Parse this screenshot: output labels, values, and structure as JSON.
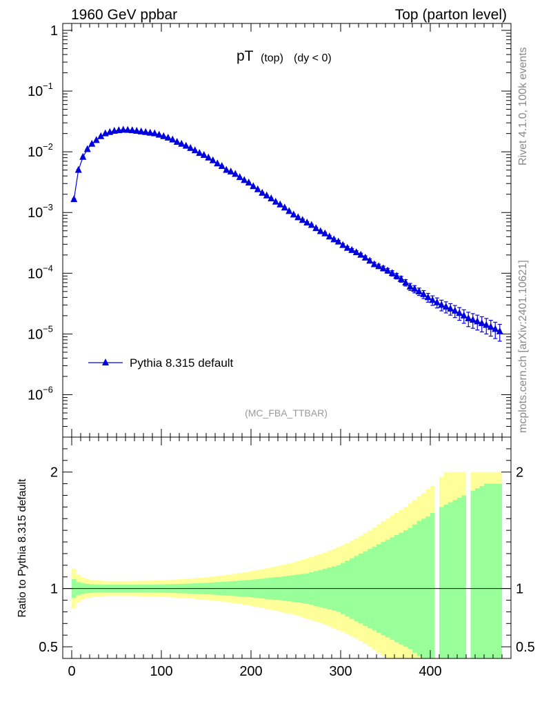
{
  "header": {
    "left": "1960 GeV ppbar",
    "right": "Top (parton level)"
  },
  "side": {
    "rivet": "Rivet 4.1.0,  100k events",
    "mcplots": "mcplots.cern.ch [arXiv:2401.10621]"
  },
  "colors": {
    "mc": "#0000dd",
    "band_inner": "#99ff99",
    "band_outer": "#ffff99"
  },
  "chart_data": [
    {
      "type": "line",
      "scale": "log",
      "title_main": "pT",
      "title_sub1": "(top)",
      "title_sub2": "(dy < 0)",
      "analysis": "(MC_FBA_TTBAR)",
      "xlim": [
        -10,
        490
      ],
      "ylim": [
        2e-07,
        1.3
      ],
      "yticks": [
        {
          "v": 1,
          "label": "1"
        },
        {
          "v": 0.1,
          "base": "10",
          "exp": "−1"
        },
        {
          "v": 0.01,
          "base": "10",
          "exp": "−2"
        },
        {
          "v": 0.001,
          "base": "10",
          "exp": "−3"
        },
        {
          "v": 0.0001,
          "base": "10",
          "exp": "−4"
        },
        {
          "v": 1e-05,
          "base": "10",
          "exp": "−5"
        },
        {
          "v": 1e-06,
          "base": "10",
          "exp": "−6"
        }
      ],
      "legend": "Pythia 8.315 default",
      "series": [
        {
          "name": "Pythia 8.315 default",
          "x": [
            2.5,
            7.5,
            12.5,
            17.5,
            22.5,
            27.5,
            32.5,
            37.5,
            42.5,
            47.5,
            52.5,
            57.5,
            62.5,
            67.5,
            72.5,
            77.5,
            82.5,
            87.5,
            92.5,
            97.5,
            102.5,
            107.5,
            112.5,
            117.5,
            122.5,
            127.5,
            132.5,
            137.5,
            142.5,
            147.5,
            152.5,
            157.5,
            162.5,
            167.5,
            172.5,
            177.5,
            182.5,
            187.5,
            192.5,
            197.5,
            202.5,
            207.5,
            212.5,
            217.5,
            222.5,
            227.5,
            232.5,
            237.5,
            242.5,
            247.5,
            252.5,
            257.5,
            262.5,
            267.5,
            272.5,
            277.5,
            282.5,
            287.5,
            292.5,
            297.5,
            302.5,
            307.5,
            312.5,
            317.5,
            322.5,
            327.5,
            332.5,
            337.5,
            342.5,
            347.5,
            352.5,
            357.5,
            362.5,
            367.5,
            372.5,
            377.5,
            382.5,
            387.5,
            392.5,
            397.5,
            402.5,
            407.5,
            412.5,
            417.5,
            422.5,
            427.5,
            432.5,
            437.5,
            442.5,
            447.5,
            452.5,
            457.5,
            462.5,
            467.5,
            472.5,
            477.5
          ],
          "y": [
            0.00165,
            0.005,
            0.0082,
            0.011,
            0.0135,
            0.0155,
            0.018,
            0.02,
            0.021,
            0.022,
            0.0225,
            0.023,
            0.0228,
            0.0225,
            0.022,
            0.0215,
            0.021,
            0.0205,
            0.02,
            0.019,
            0.018,
            0.017,
            0.0158,
            0.0145,
            0.0135,
            0.0125,
            0.0115,
            0.0105,
            0.0095,
            0.0088,
            0.008,
            0.0072,
            0.0064,
            0.0058,
            0.005,
            0.0047,
            0.0043,
            0.0038,
            0.0034,
            0.0031,
            0.0027,
            0.0024,
            0.0021,
            0.0019,
            0.0017,
            0.0015,
            0.00135,
            0.0012,
            0.00105,
            0.00092,
            0.00083,
            0.00075,
            0.00068,
            0.00062,
            0.00055,
            0.00049,
            0.00045,
            0.0004,
            0.00036,
            0.00033,
            0.00029,
            0.00026,
            0.00024,
            0.00022,
            0.0002,
            0.00018,
            0.00016,
            0.00014,
            0.00013,
            0.00012,
            0.00011,
            0.0001,
            9e-05,
            8e-05,
            7e-05,
            6e-05,
            5.5e-05,
            5e-05,
            4.5e-05,
            4e-05,
            3.6e-05,
            3.3e-05,
            3e-05,
            2.8e-05,
            2.6e-05,
            2.4e-05,
            2.2e-05,
            2e-05,
            1.8e-05,
            1.7e-05,
            1.6e-05,
            1.5e-05,
            1.4e-05,
            1.3e-05,
            1.2e-05,
            1.1e-05
          ],
          "err": [
            4e-05,
            8e-05,
            0.0001,
            0.00012,
            0.00013,
            0.00014,
            0.00015,
            0.00016,
            0.00016,
            0.00017,
            0.00017,
            0.00017,
            0.00017,
            0.00017,
            0.00017,
            0.00017,
            0.00016,
            0.00016,
            0.00016,
            0.00015,
            0.00015,
            0.00014,
            0.00014,
            0.00013,
            0.00013,
            0.00012,
            0.00012,
            0.00011,
            0.0001,
            0.0001,
            9.5e-05,
            9e-05,
            8.5e-05,
            8e-05,
            7.5e-05,
            7e-05,
            6.6e-05,
            6.2e-05,
            5.8e-05,
            5.5e-05,
            5.2e-05,
            4.9e-05,
            4.6e-05,
            4.4e-05,
            4.1e-05,
            3.9e-05,
            3.7e-05,
            3.4e-05,
            3.2e-05,
            3e-05,
            2.8e-05,
            2.7e-05,
            2.5e-05,
            2.4e-05,
            2.3e-05,
            2.2e-05,
            2.1e-05,
            2e-05,
            1.9e-05,
            1.8e-05,
            1.7e-05,
            1.6e-05,
            1.5e-05,
            1.4e-05,
            1.4e-05,
            1.3e-05,
            1.2e-05,
            1.2e-05,
            1.1e-05,
            1.1e-05,
            1e-05,
            1e-05,
            9.5e-06,
            9e-06,
            8.5e-06,
            8e-06,
            7.5e-06,
            7e-06,
            6.8e-06,
            6.6e-06,
            6.4e-06,
            6.2e-06,
            6e-06,
            5.8e-06,
            5.6e-06,
            5.4e-06,
            5.2e-06,
            5e-06,
            4.8e-06,
            4.6e-06,
            4.4e-06,
            4.2e-06,
            4e-06,
            3.8e-06,
            3.6e-06,
            3.4e-06
          ]
        }
      ]
    },
    {
      "type": "area",
      "ylabel": "Ratio to Pythia 8.315 default",
      "xlim": [
        -10,
        490
      ],
      "ylim": [
        0.4,
        2.3
      ],
      "xticks": [
        0,
        100,
        200,
        300,
        400
      ],
      "yticks": [
        0.5,
        1,
        2
      ],
      "reference": 1,
      "x": [
        2.5,
        7.5,
        12.5,
        17.5,
        22.5,
        27.5,
        32.5,
        37.5,
        42.5,
        47.5,
        52.5,
        57.5,
        62.5,
        67.5,
        72.5,
        77.5,
        82.5,
        87.5,
        92.5,
        97.5,
        102.5,
        107.5,
        112.5,
        117.5,
        122.5,
        127.5,
        132.5,
        137.5,
        142.5,
        147.5,
        152.5,
        157.5,
        162.5,
        167.5,
        172.5,
        177.5,
        182.5,
        187.5,
        192.5,
        197.5,
        202.5,
        207.5,
        212.5,
        217.5,
        222.5,
        227.5,
        232.5,
        237.5,
        242.5,
        247.5,
        252.5,
        257.5,
        262.5,
        267.5,
        272.5,
        277.5,
        282.5,
        287.5,
        292.5,
        297.5,
        302.5,
        307.5,
        312.5,
        317.5,
        322.5,
        327.5,
        332.5,
        337.5,
        342.5,
        347.5,
        352.5,
        357.5,
        362.5,
        367.5,
        372.5,
        377.5,
        382.5,
        387.5,
        392.5,
        397.5,
        402.5,
        407.5,
        412.5,
        417.5,
        422.5,
        427.5,
        432.5,
        437.5,
        442.5,
        447.5,
        452.5,
        457.5,
        462.5,
        467.5,
        472.5,
        477.5
      ],
      "inner": [
        0.08,
        0.055,
        0.045,
        0.04,
        0.037,
        0.035,
        0.034,
        0.033,
        0.033,
        0.033,
        0.033,
        0.033,
        0.033,
        0.033,
        0.033,
        0.033,
        0.034,
        0.034,
        0.035,
        0.035,
        0.036,
        0.037,
        0.038,
        0.039,
        0.04,
        0.041,
        0.043,
        0.045,
        0.046,
        0.048,
        0.05,
        0.052,
        0.055,
        0.057,
        0.06,
        0.062,
        0.065,
        0.068,
        0.07,
        0.073,
        0.077,
        0.08,
        0.085,
        0.09,
        0.094,
        0.098,
        0.1,
        0.105,
        0.11,
        0.115,
        0.12,
        0.125,
        0.13,
        0.14,
        0.15,
        0.16,
        0.17,
        0.18,
        0.19,
        0.2,
        0.22,
        0.24,
        0.26,
        0.28,
        0.3,
        0.32,
        0.34,
        0.36,
        0.38,
        0.4,
        0.42,
        0.44,
        0.46,
        0.48,
        0.5,
        0.52,
        0.55,
        0.58,
        0.6,
        0.62,
        0.65,
        0.68,
        0.7,
        0.72,
        0.74,
        0.76,
        0.78,
        0.8,
        0.82,
        0.84,
        0.86,
        0.88,
        0.9,
        0.9,
        0.9,
        0.9
      ],
      "outer": [
        0.17,
        0.12,
        0.095,
        0.082,
        0.075,
        0.07,
        0.067,
        0.065,
        0.064,
        0.064,
        0.064,
        0.064,
        0.064,
        0.065,
        0.065,
        0.066,
        0.067,
        0.068,
        0.069,
        0.07,
        0.072,
        0.074,
        0.076,
        0.078,
        0.08,
        0.082,
        0.085,
        0.088,
        0.092,
        0.096,
        0.1,
        0.104,
        0.108,
        0.112,
        0.117,
        0.122,
        0.127,
        0.133,
        0.139,
        0.145,
        0.152,
        0.159,
        0.166,
        0.174,
        0.182,
        0.19,
        0.198,
        0.207,
        0.216,
        0.226,
        0.236,
        0.247,
        0.258,
        0.27,
        0.283,
        0.296,
        0.31,
        0.325,
        0.34,
        0.356,
        0.373,
        0.39,
        0.41,
        0.43,
        0.45,
        0.475,
        0.5,
        0.525,
        0.55,
        0.575,
        0.6,
        0.625,
        0.65,
        0.675,
        0.7,
        0.73,
        0.76,
        0.79,
        0.82,
        0.85,
        0.88,
        0.92,
        0.96,
        1.0,
        1.0,
        1.0,
        1.0,
        1.0,
        1.0,
        1.0,
        1.0,
        1.0,
        1.0,
        1.0,
        1.0,
        1.0
      ],
      "gap_bins": [
        81,
        88
      ]
    }
  ]
}
